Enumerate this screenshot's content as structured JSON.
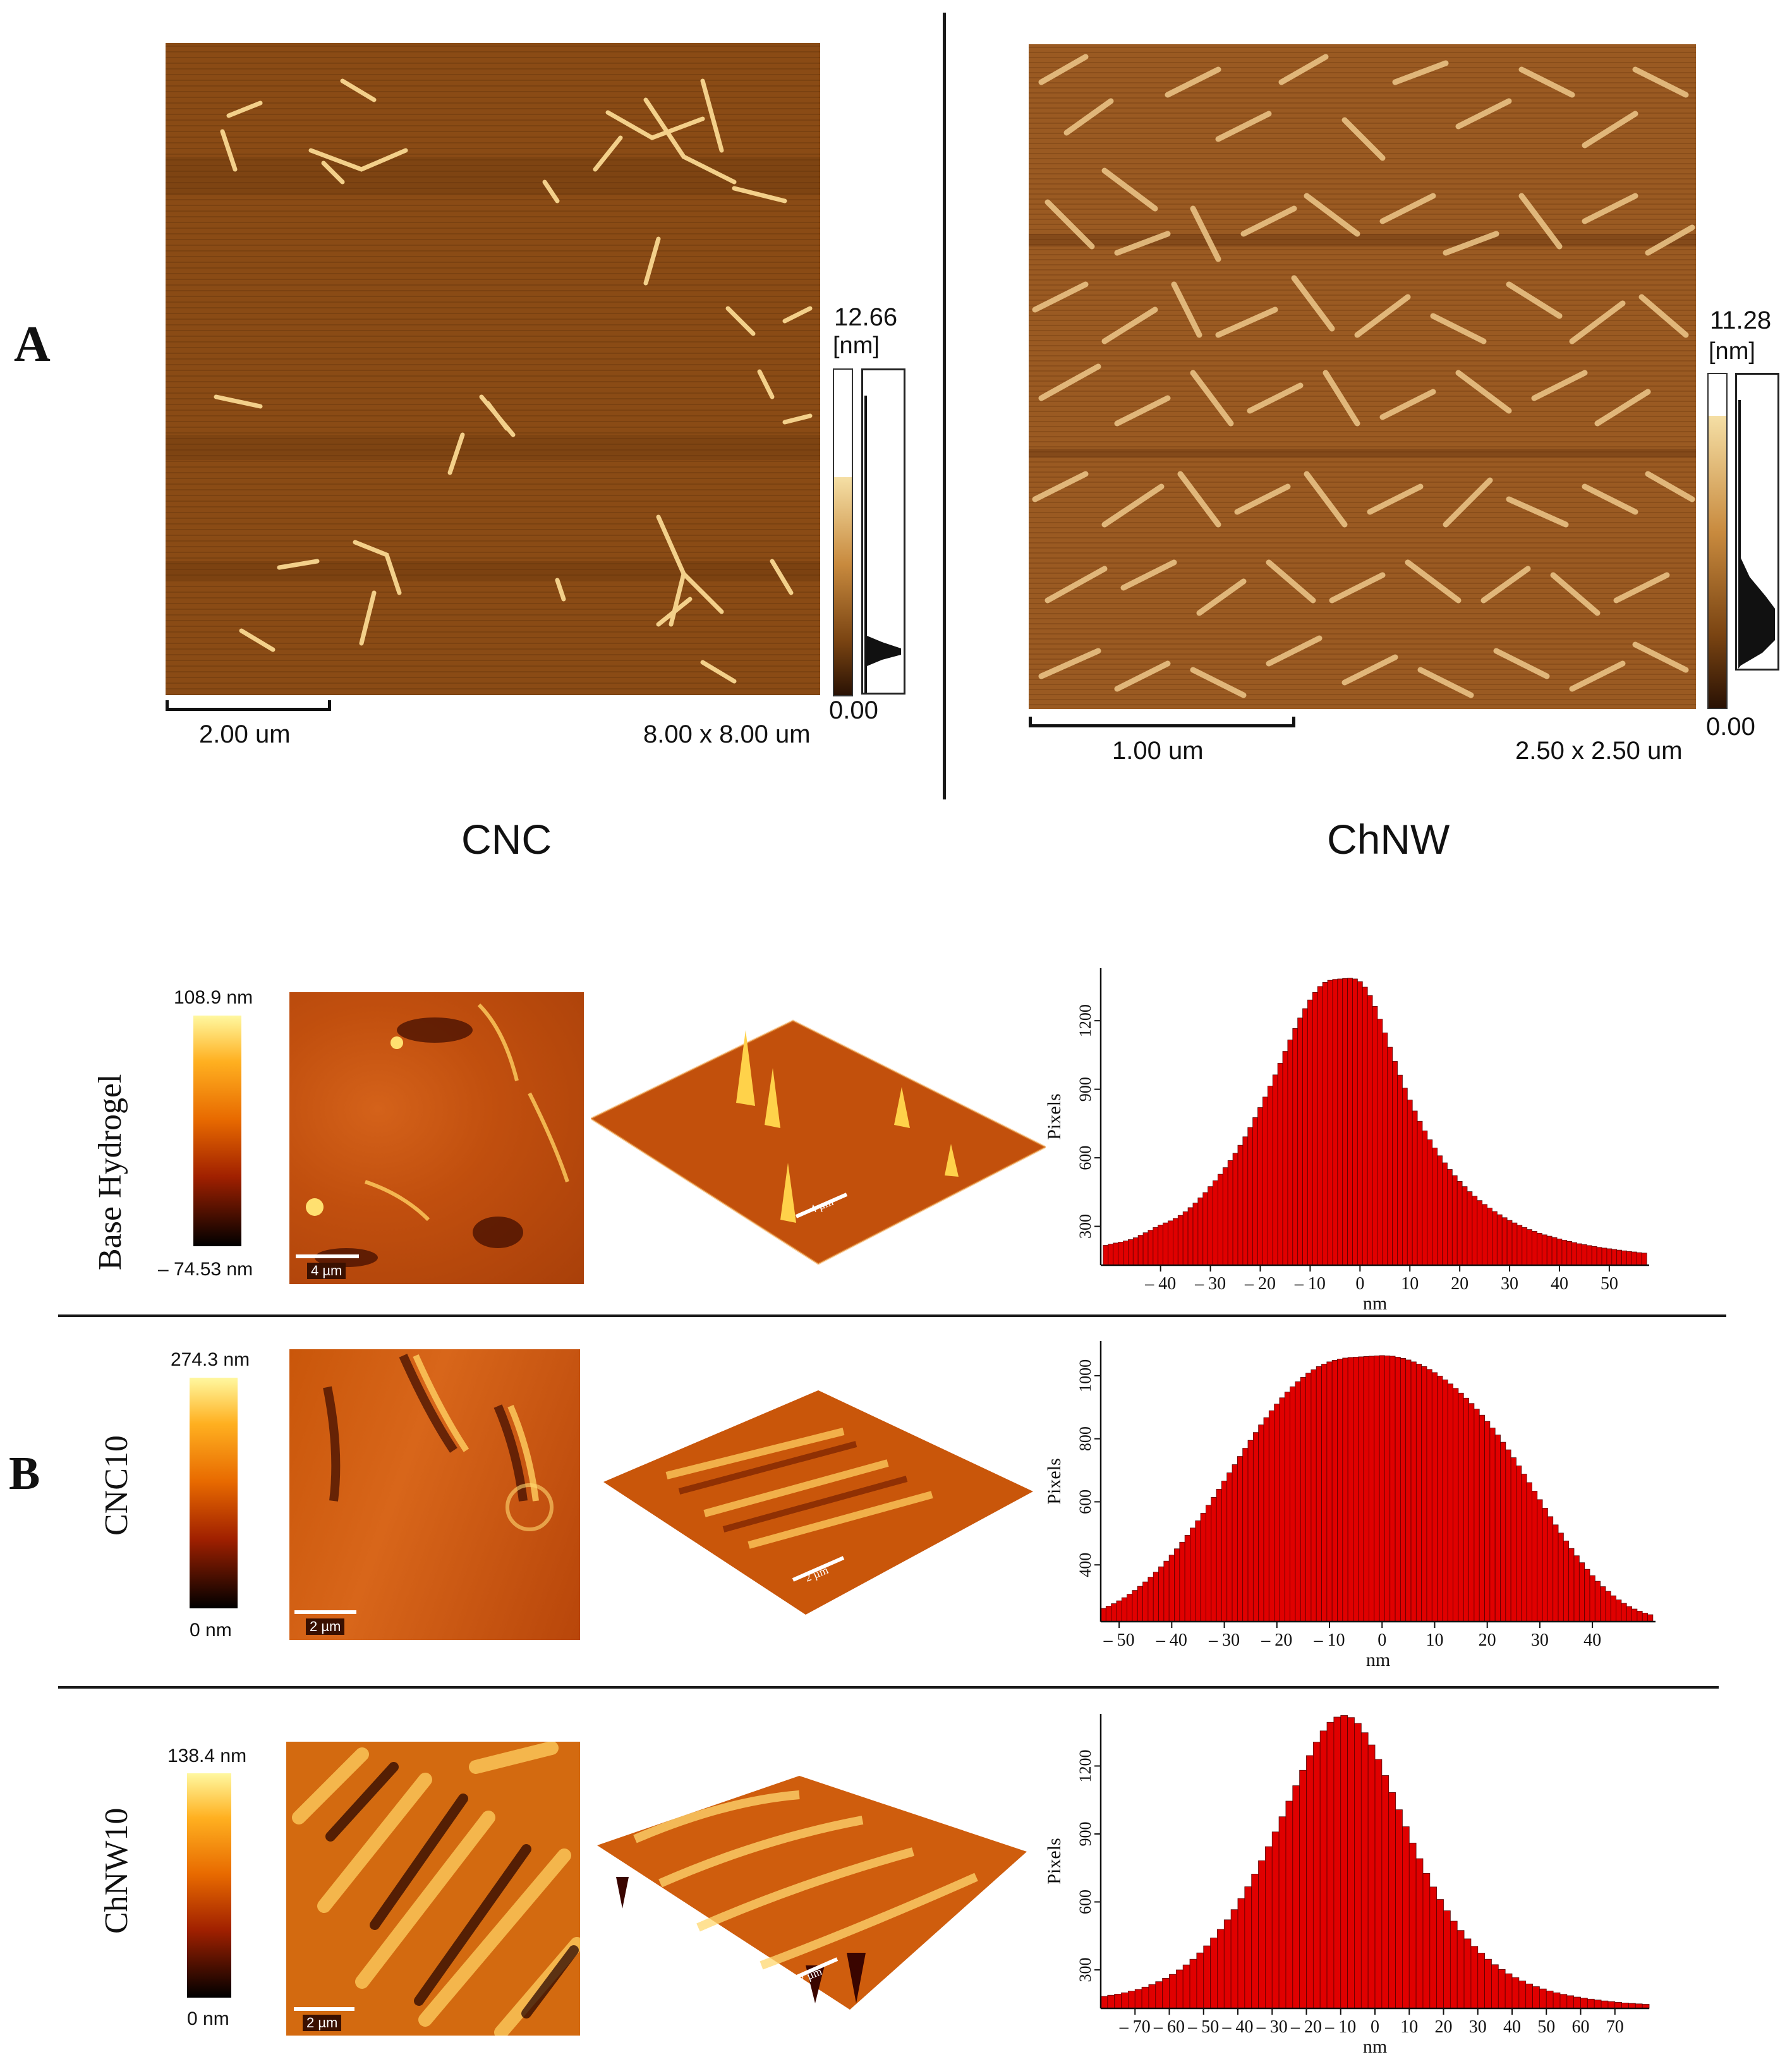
{
  "panel_a": {
    "letter": "A",
    "cnc": {
      "max": "12.66",
      "unit": "[nm]",
      "min": "0.00",
      "scale_label": "2.00 um",
      "size_label": "8.00 x 8.00 um",
      "caption": "CNC"
    },
    "chnw": {
      "max": "11.28",
      "unit": "[nm]",
      "min": "0.00",
      "scale_label": "1.00 um",
      "size_label": "2.50 x 2.50 um",
      "caption": "ChNW"
    }
  },
  "panel_b": {
    "letter": "B",
    "rows": [
      {
        "label": "Base Hydrogel",
        "cmax": "108.9 nm",
        "cmin": "– 74.53 nm",
        "scale": "4 µm",
        "scale3d": "4 µm"
      },
      {
        "label": "CNC10",
        "cmax": "274.3 nm",
        "cmin": "0 nm",
        "scale": "2 µm",
        "scale3d": "2 µm"
      },
      {
        "label": "ChNW10",
        "cmax": "138.4 nm",
        "cmin": "0 nm",
        "scale": "2 µm",
        "scale3d": "2 µm"
      }
    ]
  },
  "colors": {
    "bar_fill": "#e00000",
    "bar_edge": "#5a0000",
    "afm_brown": "#7a4412",
    "afm_orange": "#c9560a"
  },
  "chart_data": [
    {
      "type": "bar",
      "xlabel": "nm",
      "ylabel": "Pixels",
      "xticks": [
        "– 40",
        "– 30",
        "– 20",
        "– 10",
        "0",
        "10",
        "20",
        "30",
        "40",
        "50"
      ],
      "yticks": [
        "300",
        "600",
        "900",
        "1200"
      ],
      "xlim": [
        -52,
        58
      ],
      "ylim": [
        130,
        1430
      ],
      "x": [
        -51,
        -50,
        -49,
        -48,
        -47,
        -46,
        -45,
        -44,
        -43,
        -42,
        -41,
        -40,
        -39,
        -38,
        -37,
        -36,
        -35,
        -34,
        -33,
        -32,
        -31,
        -30,
        -29,
        -28,
        -27,
        -26,
        -25,
        -24,
        -23,
        -22,
        -21,
        -20,
        -19,
        -18,
        -17,
        -16,
        -15,
        -14,
        -13,
        -12,
        -11,
        -10,
        -9,
        -8,
        -7,
        -6,
        -5,
        -4,
        -3,
        -2,
        -1,
        0,
        1,
        2,
        3,
        4,
        5,
        6,
        7,
        8,
        9,
        10,
        11,
        12,
        13,
        14,
        15,
        16,
        17,
        18,
        19,
        20,
        21,
        22,
        23,
        24,
        25,
        26,
        27,
        28,
        29,
        30,
        31,
        32,
        33,
        34,
        35,
        36,
        37,
        38,
        39,
        40,
        41,
        42,
        43,
        44,
        45,
        46,
        47,
        48,
        49,
        50,
        51,
        52,
        53,
        54,
        55,
        56,
        57
      ],
      "values": [
        217,
        222,
        227,
        231,
        236,
        242,
        250,
        261,
        272,
        283,
        295,
        306,
        315,
        324,
        335,
        348,
        364,
        382,
        402,
        425,
        448,
        474,
        500,
        528,
        557,
        588,
        620,
        655,
        692,
        733,
        776,
        820,
        866,
        914,
        963,
        1014,
        1066,
        1116,
        1166,
        1212,
        1253,
        1291,
        1324,
        1350,
        1368,
        1377,
        1381,
        1383,
        1385,
        1386,
        1383,
        1371,
        1347,
        1310,
        1263,
        1207,
        1147,
        1084,
        1022,
        962,
        905,
        853,
        805,
        760,
        718,
        679,
        643,
        609,
        578,
        549,
        522,
        497,
        474,
        452,
        432,
        413,
        396,
        380,
        365,
        351,
        338,
        326,
        315,
        305,
        295,
        286,
        278,
        270,
        263,
        257,
        251,
        245,
        239,
        234,
        229,
        224,
        220,
        216,
        212,
        208,
        205,
        202,
        199,
        196,
        193,
        190,
        188,
        185,
        183
      ]
    },
    {
      "type": "bar",
      "xlabel": "nm",
      "ylabel": "Pixels",
      "xticks": [
        "– 50",
        "– 40",
        "– 30",
        "– 20",
        "– 10",
        "0",
        "10",
        "20",
        "30",
        "40"
      ],
      "yticks": [
        "400",
        "600",
        "800",
        "1000"
      ],
      "xlim": [
        -53.5,
        52
      ],
      "ylim": [
        220,
        1110
      ],
      "x": [
        -53,
        -52,
        -51,
        -50,
        -49,
        -48,
        -47,
        -46,
        -45,
        -44,
        -43,
        -42,
        -41,
        -40,
        -39,
        -38,
        -37,
        -36,
        -35,
        -34,
        -33,
        -32,
        -31,
        -30,
        -29,
        -28,
        -27,
        -26,
        -25,
        -24,
        -23,
        -22,
        -21,
        -20,
        -19,
        -18,
        -17,
        -16,
        -15,
        -14,
        -13,
        -12,
        -11,
        -10,
        -9,
        -8,
        -7,
        -6,
        -5,
        -4,
        -3,
        -2,
        -1,
        0,
        1,
        2,
        3,
        4,
        5,
        6,
        7,
        8,
        9,
        10,
        11,
        12,
        13,
        14,
        15,
        16,
        17,
        18,
        19,
        20,
        21,
        22,
        23,
        24,
        25,
        26,
        27,
        28,
        29,
        30,
        31,
        32,
        33,
        34,
        35,
        36,
        37,
        38,
        39,
        40,
        41,
        42,
        43,
        44,
        45,
        46,
        47,
        48,
        49,
        50,
        51
      ],
      "values": [
        262,
        269,
        277,
        286,
        296,
        307,
        319,
        332,
        346,
        361,
        377,
        394,
        412,
        431,
        451,
        472,
        494,
        517,
        540,
        564,
        589,
        614,
        640,
        666,
        692,
        718,
        744,
        770,
        795,
        820,
        844,
        867,
        889,
        910,
        930,
        948,
        965,
        981,
        995,
        1008,
        1019,
        1029,
        1037,
        1044,
        1049,
        1053,
        1056,
        1058,
        1059,
        1060,
        1061,
        1062,
        1063,
        1064,
        1063,
        1062,
        1059,
        1055,
        1050,
        1044,
        1037,
        1029,
        1020,
        1010,
        999,
        987,
        974,
        960,
        945,
        929,
        912,
        894,
        875,
        855,
        834,
        812,
        789,
        765,
        740,
        714,
        688,
        661,
        634,
        607,
        580,
        553,
        527,
        501,
        476,
        452,
        429,
        407,
        386,
        366,
        348,
        331,
        316,
        302,
        289,
        278,
        268,
        260,
        253,
        247,
        242
      ]
    },
    {
      "type": "bar",
      "xlabel": "nm",
      "ylabel": "Pixels",
      "xticks": [
        "– 70",
        "– 60",
        "– 50",
        "– 40",
        "– 30",
        "– 20",
        "– 10",
        "0",
        "10",
        "20",
        "30",
        "40",
        "50",
        "60",
        "70"
      ],
      "yticks": [
        "300",
        "600",
        "900",
        "1200"
      ],
      "xlim": [
        -80,
        80
      ],
      "ylim": [
        130,
        1430
      ],
      "x": [
        -79,
        -77,
        -75,
        -73,
        -71,
        -69,
        -67,
        -65,
        -63,
        -61,
        -59,
        -57,
        -55,
        -53,
        -51,
        -49,
        -47,
        -45,
        -43,
        -41,
        -39,
        -37,
        -35,
        -33,
        -31,
        -29,
        -27,
        -25,
        -23,
        -21,
        -19,
        -17,
        -15,
        -13,
        -11,
        -9,
        -7,
        -5,
        -3,
        -1,
        1,
        3,
        5,
        7,
        9,
        11,
        13,
        15,
        17,
        19,
        21,
        23,
        25,
        27,
        29,
        31,
        33,
        35,
        37,
        39,
        41,
        43,
        45,
        47,
        49,
        51,
        53,
        55,
        57,
        59,
        61,
        63,
        65,
        67,
        69,
        71,
        73,
        75,
        77,
        79
      ],
      "values": [
        183,
        188,
        193,
        199,
        206,
        214,
        224,
        235,
        248,
        263,
        280,
        300,
        322,
        347,
        375,
        406,
        441,
        479,
        521,
        566,
        615,
        667,
        723,
        782,
        844,
        909,
        976,
        1045,
        1113,
        1181,
        1246,
        1305,
        1355,
        1393,
        1416,
        1423,
        1414,
        1388,
        1347,
        1293,
        1229,
        1158,
        1083,
        1007,
        932,
        860,
        791,
        726,
        666,
        611,
        561,
        515,
        474,
        437,
        404,
        374,
        347,
        323,
        302,
        283,
        266,
        251,
        238,
        226,
        216,
        207,
        199,
        192,
        186,
        180,
        175,
        171,
        167,
        163,
        160,
        157,
        154,
        152,
        150,
        148
      ]
    }
  ]
}
